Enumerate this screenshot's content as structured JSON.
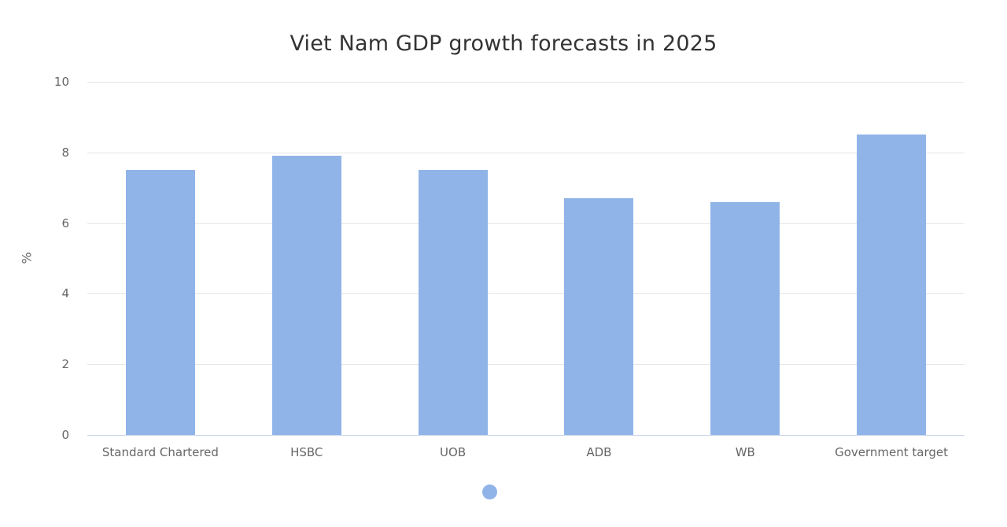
{
  "chart_data": {
    "type": "bar",
    "title": "Viet Nam GDP growth forecasts in 2025",
    "xlabel": "",
    "ylabel": "%",
    "ylim": [
      0,
      10
    ],
    "yticks": [
      "0",
      "2",
      "4",
      "6",
      "8",
      "10"
    ],
    "grid": true,
    "legend_position": "bottom",
    "categories": [
      "Standard Chartered",
      "HSBC",
      "UOB",
      "ADB",
      "WB",
      "Government target"
    ],
    "series": [
      {
        "name": "",
        "color": "#90b4e8",
        "values": [
          7.5,
          7.9,
          7.5,
          6.7,
          6.6,
          8.5
        ]
      }
    ]
  },
  "colors": {
    "bar": "#90b4e8",
    "grid": "#e6e6e6",
    "axis": "#ccd6eb",
    "text": "#666666",
    "title": "#333333"
  }
}
